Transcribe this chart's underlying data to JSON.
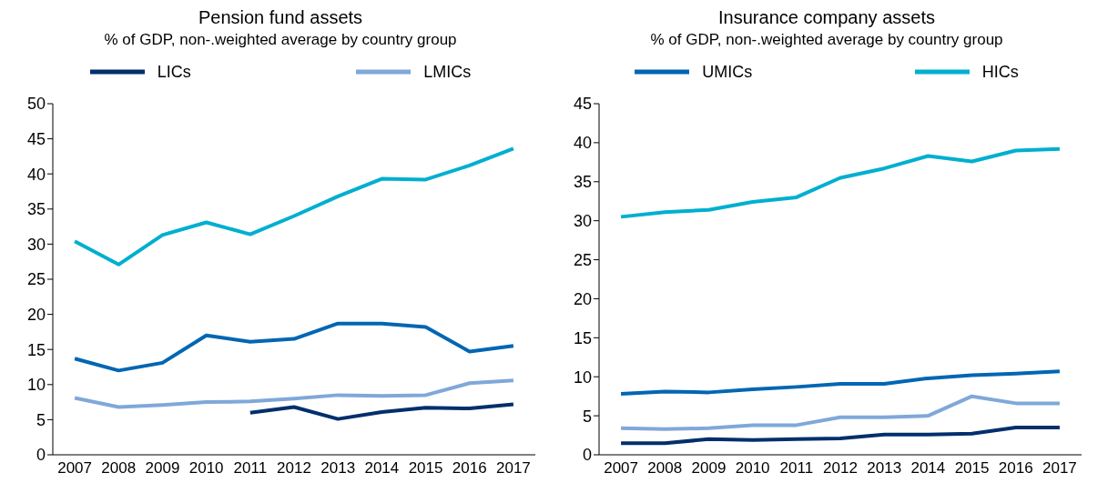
{
  "chart_data": [
    {
      "type": "line",
      "title": "Pension fund assets",
      "subtitle": "% of GDP, non-.weighted average by country group",
      "categories": [
        "2007",
        "2008",
        "2009",
        "2010",
        "2011",
        "2012",
        "2013",
        "2014",
        "2015",
        "2016",
        "2017"
      ],
      "series": [
        {
          "name": "LICs",
          "color": "#002f6c",
          "values": [
            null,
            null,
            null,
            null,
            6.0,
            6.8,
            5.1,
            6.1,
            6.7,
            6.6,
            7.2
          ]
        },
        {
          "name": "LMICs",
          "color": "#7fa8d9",
          "values": [
            8.1,
            6.8,
            7.1,
            7.5,
            7.6,
            8.0,
            8.5,
            8.4,
            8.5,
            10.2,
            10.6
          ]
        },
        {
          "color": "#0066b3",
          "values": [
            13.7,
            12.0,
            13.1,
            17.0,
            16.1,
            16.5,
            18.7,
            18.7,
            18.2,
            14.7,
            15.5
          ]
        },
        {
          "color": "#00afd0",
          "values": [
            30.4,
            27.1,
            31.3,
            33.1,
            31.4,
            34.0,
            36.8,
            39.3,
            39.2,
            41.2,
            43.6
          ]
        }
      ],
      "ylim": [
        0,
        50
      ],
      "yticks": [
        0,
        5,
        10,
        15,
        20,
        25,
        30,
        35,
        40,
        45,
        50
      ],
      "grid": false,
      "legend": "top",
      "marker": "none",
      "line_style": "solid"
    },
    {
      "type": "line",
      "title": "Insurance company assets",
      "subtitle": "% of GDP, non-.weighted average by country group",
      "categories": [
        "2007",
        "2008",
        "2009",
        "2010",
        "2011",
        "2012",
        "2013",
        "2014",
        "2015",
        "2016",
        "2017"
      ],
      "series": [
        {
          "color": "#002f6c",
          "values": [
            1.5,
            1.5,
            2.0,
            1.9,
            2.0,
            2.1,
            2.6,
            2.6,
            2.7,
            3.5,
            3.5
          ]
        },
        {
          "color": "#7fa8d9",
          "values": [
            3.4,
            3.3,
            3.4,
            3.8,
            3.8,
            4.8,
            4.8,
            5.0,
            7.5,
            6.6,
            6.6
          ]
        },
        {
          "name": "UMICs",
          "color": "#0066b3",
          "values": [
            7.8,
            8.1,
            8.0,
            8.4,
            8.7,
            9.1,
            9.1,
            9.8,
            10.2,
            10.4,
            10.7
          ]
        },
        {
          "name": "HICs",
          "color": "#00afd0",
          "values": [
            30.5,
            31.1,
            31.4,
            32.4,
            33.0,
            35.5,
            36.7,
            38.3,
            37.6,
            39.0,
            39.2
          ]
        }
      ],
      "ylim": [
        0,
        45
      ],
      "yticks": [
        0,
        5,
        10,
        15,
        20,
        25,
        30,
        35,
        40,
        45
      ],
      "grid": false,
      "legend": "top",
      "marker": "none",
      "line_style": "solid"
    }
  ]
}
